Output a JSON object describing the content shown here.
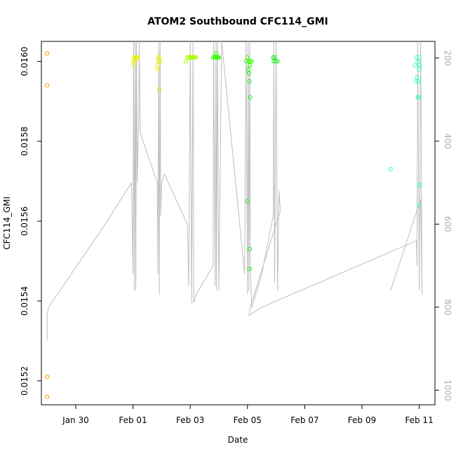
{
  "chart_data": {
    "type": "scatter",
    "title": "ATOM2 Southbound CFC114_GMI",
    "xlabel": "Date",
    "ylabel": "CFC114_GMI",
    "x_units": "days since Jan 30 (x axis dates)",
    "x_ticks": [
      {
        "label": "Jan 30",
        "x": 0
      },
      {
        "label": "Feb 01",
        "x": 2
      },
      {
        "label": "Feb 03",
        "x": 4
      },
      {
        "label": "Feb 05",
        "x": 6
      },
      {
        "label": "Feb 07",
        "x": 8
      },
      {
        "label": "Feb 09",
        "x": 10
      },
      {
        "label": "Feb 11",
        "x": 12
      }
    ],
    "xlim": [
      -1.2,
      12.55
    ],
    "ylim": [
      0.01514,
      0.01605
    ],
    "y_ticks": [
      "0.0152",
      "0.0154",
      "0.0156",
      "0.0158",
      "0.0160"
    ],
    "y_tick_values": [
      0.0152,
      0.0154,
      0.0156,
      0.0158,
      0.016
    ],
    "y2_ticks": [
      "200",
      "400",
      "600",
      "800",
      "1000"
    ],
    "y2_tick_values": [
      200,
      400,
      600,
      800,
      1000
    ],
    "y2lim": [
      1035,
      160
    ],
    "grid": false,
    "legend": "none",
    "colors": {
      "orange": "#ff9900",
      "yellow": "#e6f200",
      "lime": "#a6ff00",
      "green": "#33ff00",
      "green2": "#22ee22",
      "teal": "#33ffbb",
      "line": "#bebebe"
    },
    "series": [
      {
        "color_key": "orange",
        "points": [
          [
            -1.0,
            0.01602
          ],
          [
            -1.0,
            0.01594
          ],
          [
            -1.0,
            0.01521
          ],
          [
            -1.0,
            0.01516
          ]
        ]
      },
      {
        "color_key": "yellow",
        "points": [
          [
            2.05,
            0.01601
          ],
          [
            2.1,
            0.01601
          ],
          [
            2.0,
            0.016
          ],
          [
            2.15,
            0.01601
          ],
          [
            2.08,
            0.016
          ],
          [
            2.12,
            0.01601
          ],
          [
            2.03,
            0.01599
          ],
          [
            2.07,
            0.01601
          ],
          [
            2.88,
            0.01601
          ],
          [
            2.9,
            0.016
          ],
          [
            2.95,
            0.016
          ],
          [
            2.85,
            0.01599
          ],
          [
            2.87,
            0.01598
          ],
          [
            2.92,
            0.01593
          ],
          [
            2.9,
            0.01601
          ]
        ]
      },
      {
        "color_key": "lime",
        "points": [
          [
            4.0,
            0.01601
          ],
          [
            4.05,
            0.01601
          ],
          [
            4.1,
            0.01601
          ],
          [
            4.15,
            0.01601
          ],
          [
            4.02,
            0.01601
          ],
          [
            4.08,
            0.01601
          ],
          [
            3.85,
            0.016
          ],
          [
            3.9,
            0.01601
          ],
          [
            3.95,
            0.01601
          ],
          [
            4.2,
            0.01601
          ],
          [
            4.12,
            0.01601
          ]
        ]
      },
      {
        "color_key": "green",
        "points": [
          [
            4.85,
            0.01601
          ],
          [
            4.9,
            0.01602
          ],
          [
            4.95,
            0.01601
          ],
          [
            5.0,
            0.01601
          ],
          [
            4.8,
            0.01601
          ],
          [
            4.88,
            0.01601
          ],
          [
            4.92,
            0.01601
          ],
          [
            4.97,
            0.01601
          ],
          [
            5.95,
            0.016
          ],
          [
            6.0,
            0.01601
          ],
          [
            6.05,
            0.016
          ],
          [
            6.1,
            0.016
          ],
          [
            6.08,
            0.01599
          ],
          [
            6.15,
            0.016
          ]
        ]
      },
      {
        "color_key": "green2",
        "points": [
          [
            6.9,
            0.01601
          ],
          [
            6.95,
            0.01601
          ],
          [
            7.0,
            0.016
          ],
          [
            7.05,
            0.016
          ],
          [
            6.92,
            0.016
          ],
          [
            6.02,
            0.01598
          ],
          [
            6.05,
            0.01597
          ],
          [
            6.07,
            0.01595
          ],
          [
            6.1,
            0.01591
          ],
          [
            6.0,
            0.01565
          ],
          [
            6.08,
            0.01553
          ],
          [
            6.07,
            0.01548
          ]
        ]
      },
      {
        "color_key": "teal",
        "points": [
          [
            11.0,
            0.01573
          ],
          [
            11.9,
            0.01601
          ],
          [
            11.95,
            0.016
          ],
          [
            12.0,
            0.01601
          ],
          [
            11.85,
            0.01599
          ],
          [
            12.02,
            0.01599
          ],
          [
            11.92,
            0.01596
          ],
          [
            11.97,
            0.01595
          ],
          [
            11.9,
            0.01595
          ],
          [
            12.0,
            0.01598
          ],
          [
            11.98,
            0.01591
          ],
          [
            11.95,
            0.01591
          ],
          [
            12.0,
            0.01569
          ],
          [
            12.0,
            0.01564
          ]
        ]
      }
    ],
    "pressure_profile": [
      [
        -1.0,
        880
      ],
      [
        -1.0,
        820
      ],
      [
        -0.95,
        800
      ],
      [
        1.0,
        603
      ],
      [
        1.95,
        500
      ],
      [
        2.0,
        720
      ],
      [
        2.02,
        160
      ],
      [
        2.05,
        760
      ],
      [
        2.08,
        160
      ],
      [
        2.1,
        760
      ],
      [
        2.12,
        160
      ],
      [
        2.15,
        500
      ],
      [
        2.2,
        350
      ],
      [
        2.22,
        160
      ],
      [
        2.25,
        380
      ],
      [
        2.85,
        500
      ],
      [
        2.87,
        720
      ],
      [
        2.9,
        160
      ],
      [
        2.92,
        770
      ],
      [
        2.95,
        160
      ],
      [
        2.97,
        580
      ],
      [
        3.0,
        500
      ],
      [
        3.1,
        480
      ],
      [
        3.9,
        600
      ],
      [
        3.95,
        750
      ],
      [
        4.0,
        160
      ],
      [
        4.05,
        790
      ],
      [
        4.1,
        160
      ],
      [
        4.12,
        790
      ],
      [
        4.2,
        770
      ],
      [
        4.8,
        700
      ],
      [
        4.82,
        160
      ],
      [
        4.87,
        750
      ],
      [
        4.9,
        160
      ],
      [
        4.92,
        760
      ],
      [
        4.95,
        160
      ],
      [
        5.0,
        760
      ],
      [
        5.05,
        460
      ],
      [
        5.1,
        160
      ],
      [
        5.9,
        720
      ],
      [
        5.95,
        160
      ],
      [
        6.0,
        770
      ],
      [
        6.02,
        160
      ],
      [
        6.05,
        760
      ],
      [
        6.08,
        160
      ],
      [
        6.1,
        700
      ],
      [
        6.15,
        800
      ],
      [
        6.5,
        720
      ],
      [
        6.9,
        580
      ],
      [
        6.92,
        160
      ],
      [
        6.95,
        740
      ],
      [
        7.0,
        160
      ],
      [
        7.05,
        760
      ],
      [
        7.1,
        520
      ],
      [
        7.15,
        570
      ],
      [
        7.0,
        600
      ],
      [
        6.1,
        800
      ],
      [
        6.05,
        820
      ],
      [
        6.5,
        800
      ],
      [
        11.9,
        640
      ],
      [
        11.92,
        700
      ],
      [
        11.95,
        160
      ],
      [
        12.0,
        760
      ],
      [
        12.05,
        160
      ],
      [
        12.1,
        770
      ],
      [
        12.05,
        540
      ],
      [
        11.0,
        760
      ]
    ]
  }
}
